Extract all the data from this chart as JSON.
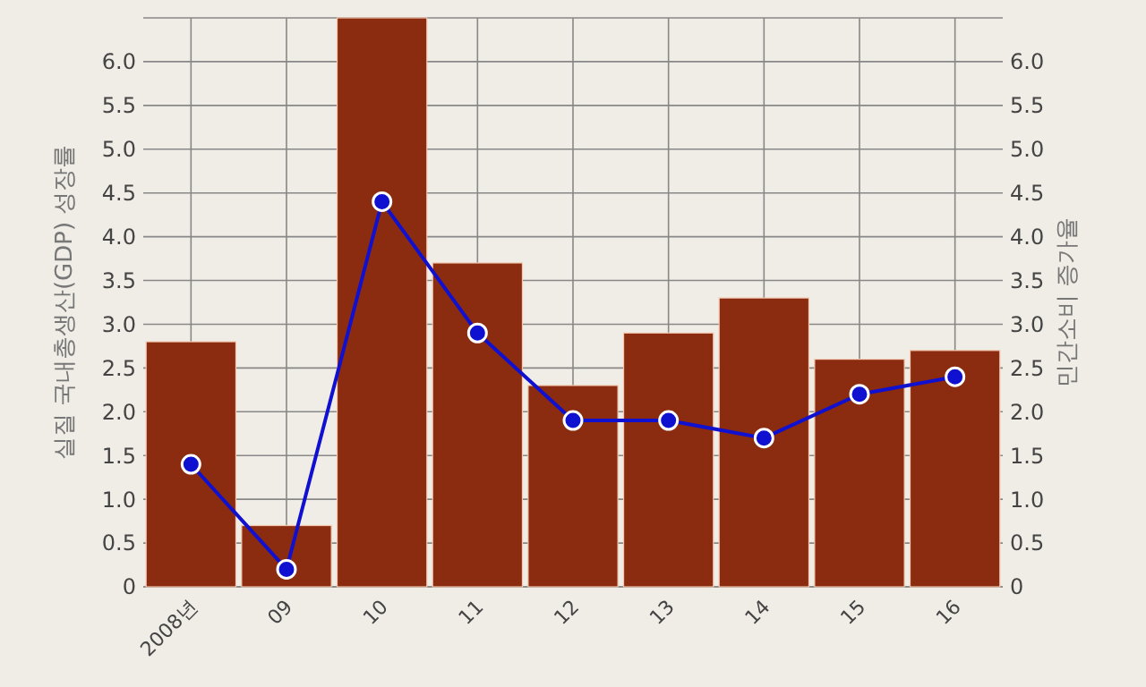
{
  "chart_data": {
    "type": "bar",
    "ylabel": "실질 국내총생산(GDP) 성장률",
    "y2label": "민간소비 증가율",
    "categories": [
      "2008년",
      "09",
      "10",
      "11",
      "12",
      "13",
      "14",
      "15",
      "16"
    ],
    "series": [
      {
        "color": "#8b2c10",
        "values": [
          2.8,
          0.7,
          6.5,
          3.7,
          2.3,
          2.9,
          3.3,
          2.6,
          2.7
        ]
      },
      {
        "type": "line",
        "axis": "y2",
        "color": "#1010d0",
        "marker": "circle",
        "values": [
          1.4,
          0.2,
          4.4,
          2.9,
          1.9,
          1.9,
          1.7,
          2.2,
          2.4
        ]
      }
    ],
    "ylim": [
      0,
      6.5
    ],
    "yticks": [
      0,
      0.5,
      {
        "value": 1,
        "label": "1.0"
      },
      1.5,
      {
        "value": 2,
        "label": "2.0"
      },
      2.5,
      {
        "value": 3,
        "label": "3.0"
      },
      3.5,
      {
        "value": 4,
        "label": "4.0"
      },
      4.5,
      {
        "value": 5,
        "label": "5.0"
      },
      5.5,
      {
        "value": 6,
        "label": "6.0"
      }
    ],
    "y2lim": [
      0,
      6.5
    ],
    "y2ticks": [
      0,
      0.5,
      {
        "value": 1,
        "label": "1.0"
      },
      1.5,
      {
        "value": 2,
        "label": "2.0"
      },
      2.5,
      {
        "value": 3,
        "label": "3.0"
      },
      3.5,
      {
        "value": 4,
        "label": "4.0"
      },
      4.5,
      {
        "value": 5,
        "label": "5.0"
      },
      5.5,
      {
        "value": 6,
        "label": "6.0"
      }
    ],
    "grid": true
  }
}
